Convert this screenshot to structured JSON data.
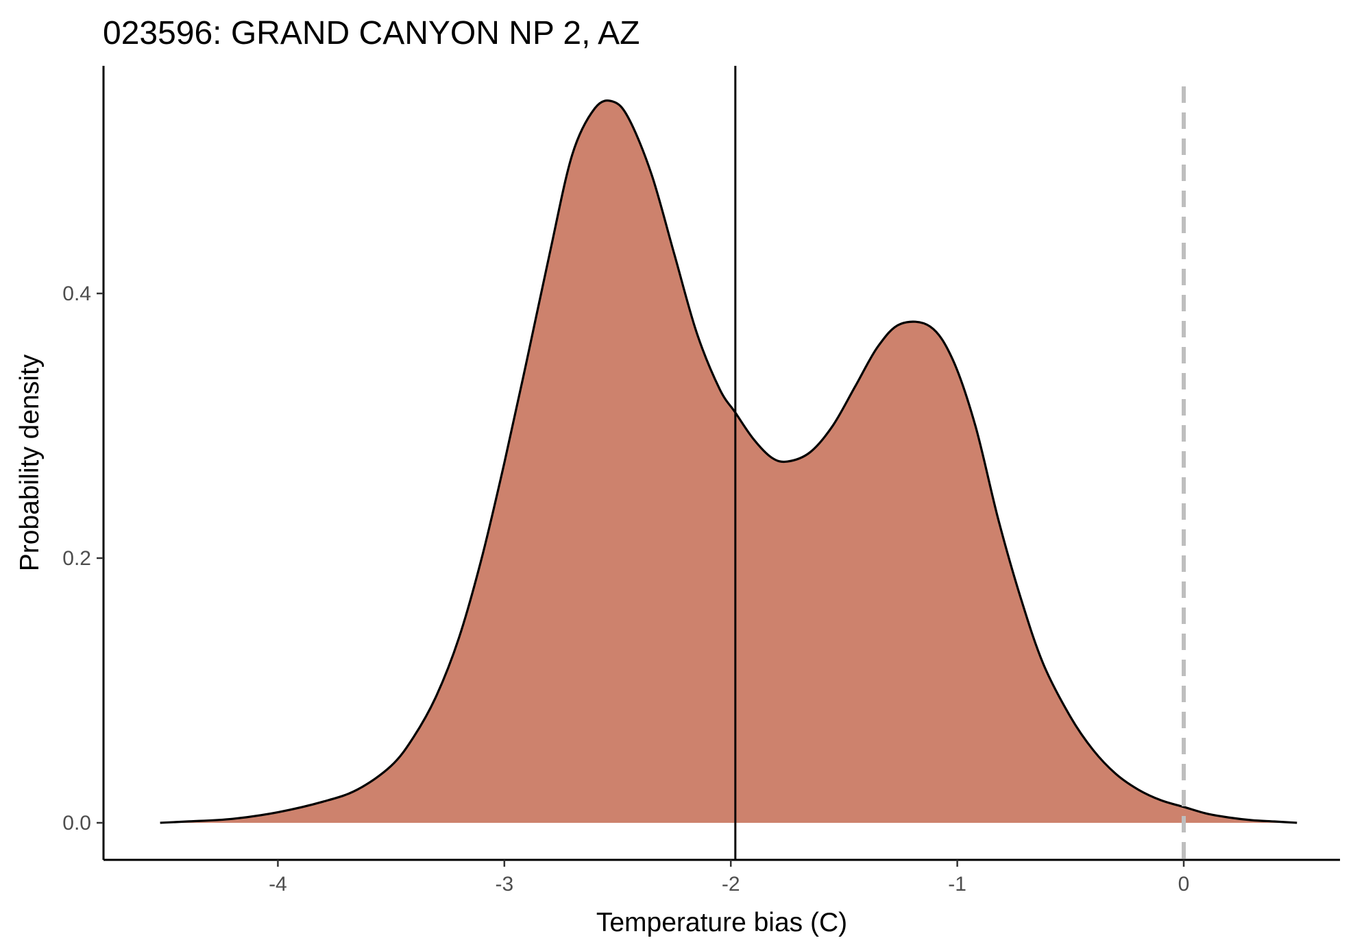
{
  "chart_data": {
    "type": "area",
    "title": "023596: GRAND CANYON NP 2, AZ",
    "xlabel": "Temperature bias (C)",
    "ylabel": "Probability density",
    "xlim": [
      -4.77,
      0.69
    ],
    "ylim": [
      -0.028,
      0.572
    ],
    "x_ticks": [
      -4,
      -3,
      -2,
      -1,
      0
    ],
    "x_tick_labels": [
      "-4",
      "-3",
      "-2",
      "-1",
      "0"
    ],
    "y_ticks": [
      0.0,
      0.2,
      0.4
    ],
    "y_tick_labels": [
      "0.0",
      "0.2",
      "0.4"
    ],
    "grid": false,
    "legend": "none",
    "fill_color": "#cd826d",
    "line_color": "#000000",
    "series": [
      {
        "x": [
          -4.52,
          -4.4,
          -4.2,
          -4.0,
          -3.8,
          -3.65,
          -3.5,
          -3.4,
          -3.3,
          -3.2,
          -3.1,
          -3.0,
          -2.9,
          -2.8,
          -2.7,
          -2.6,
          -2.52,
          -2.45,
          -2.35,
          -2.25,
          -2.15,
          -2.05,
          -1.98,
          -1.9,
          -1.82,
          -1.75,
          -1.65,
          -1.55,
          -1.45,
          -1.35,
          -1.25,
          -1.12,
          -1.02,
          -0.92,
          -0.82,
          -0.72,
          -0.62,
          -0.5,
          -0.4,
          -0.3,
          -0.2,
          -0.1,
          0.0,
          0.1,
          0.2,
          0.3,
          0.4,
          0.5
        ],
        "y": [
          0.0,
          0.001,
          0.003,
          0.008,
          0.016,
          0.025,
          0.043,
          0.065,
          0.096,
          0.14,
          0.2,
          0.272,
          0.35,
          0.43,
          0.505,
          0.54,
          0.545,
          0.532,
          0.49,
          0.43,
          0.37,
          0.328,
          0.31,
          0.29,
          0.276,
          0.273,
          0.28,
          0.3,
          0.33,
          0.36,
          0.377,
          0.375,
          0.35,
          0.3,
          0.23,
          0.17,
          0.12,
          0.08,
          0.055,
          0.037,
          0.025,
          0.017,
          0.012,
          0.007,
          0.004,
          0.002,
          0.001,
          0.0
        ]
      }
    ],
    "reference_lines": [
      {
        "x": -1.98,
        "style": "solid",
        "color": "#000000"
      },
      {
        "x": 0,
        "style": "dashed",
        "color": "#bebebe"
      }
    ]
  }
}
